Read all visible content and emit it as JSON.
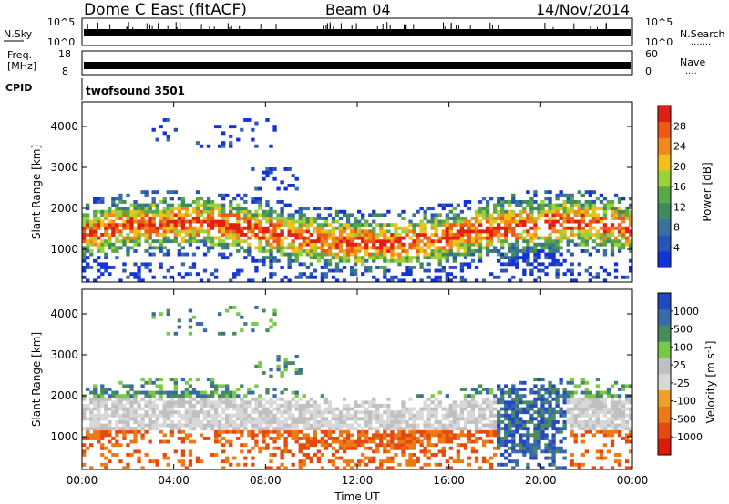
{
  "header": {
    "title": "Dome C East (fitACF)",
    "beam": "Beam 04",
    "date": "14/Nov/2014"
  },
  "noise_panel": {
    "left_label": "N.Sky",
    "left_ticks": [
      "10^5",
      "10^0"
    ],
    "right_ticks": [
      "10^5",
      "10^0"
    ],
    "right_label": "N.Search",
    "right_label_marker": "·······"
  },
  "freq_panel": {
    "left_label_1": "Freq.",
    "left_label_2": "[MHz]",
    "left_ticks": [
      "18",
      "8"
    ],
    "right_ticks": [
      "60",
      "0"
    ],
    "right_label": "Nave",
    "right_label_marker": "····"
  },
  "cpid": {
    "label": "CPID",
    "value": "twofsound 3501"
  },
  "colors": {
    "power_scale": [
      "#1433d6",
      "#2a52b8",
      "#3a6fa0",
      "#3f8a5a",
      "#5aa84a",
      "#9bd23a",
      "#f2c01b",
      "#f08a1c",
      "#ec5a16",
      "#e02010"
    ],
    "velocity_scale": [
      "#2448c0",
      "#3a6aa8",
      "#4a8a5e",
      "#78c84a",
      "#c0c0c0",
      "#d8d8d8",
      "#f0a028",
      "#ec7a14",
      "#e44a10",
      "#dc1a0a"
    ]
  },
  "chart_data": [
    {
      "type": "heatmap",
      "name": "power",
      "xlabel": "",
      "ylabel": "Slant Range [km]",
      "x_ticks": [
        "00:00",
        "04:00",
        "08:00",
        "12:00",
        "16:00",
        "20:00",
        "00:00"
      ],
      "y_ticks": [
        1000,
        2000,
        3000,
        4000
      ],
      "ylim": [
        200,
        4600
      ],
      "colorbar": {
        "label": "Power [dB]",
        "ticks": [
          4,
          8,
          12,
          16,
          20,
          24,
          28
        ],
        "range": [
          0,
          32
        ]
      }
    },
    {
      "type": "heatmap",
      "name": "velocity",
      "xlabel": "Time UT",
      "ylabel": "Slant Range [km]",
      "x_ticks": [
        "00:00",
        "04:00",
        "08:00",
        "12:00",
        "16:00",
        "20:00",
        "00:00"
      ],
      "y_ticks": [
        1000,
        2000,
        3000,
        4000
      ],
      "ylim": [
        200,
        4600
      ],
      "colorbar": {
        "label": "Velocity [m s-1]",
        "ticks": [
          "1000",
          "500",
          "100",
          "25",
          "-25",
          "-100",
          "-500",
          "-1000"
        ]
      }
    }
  ]
}
